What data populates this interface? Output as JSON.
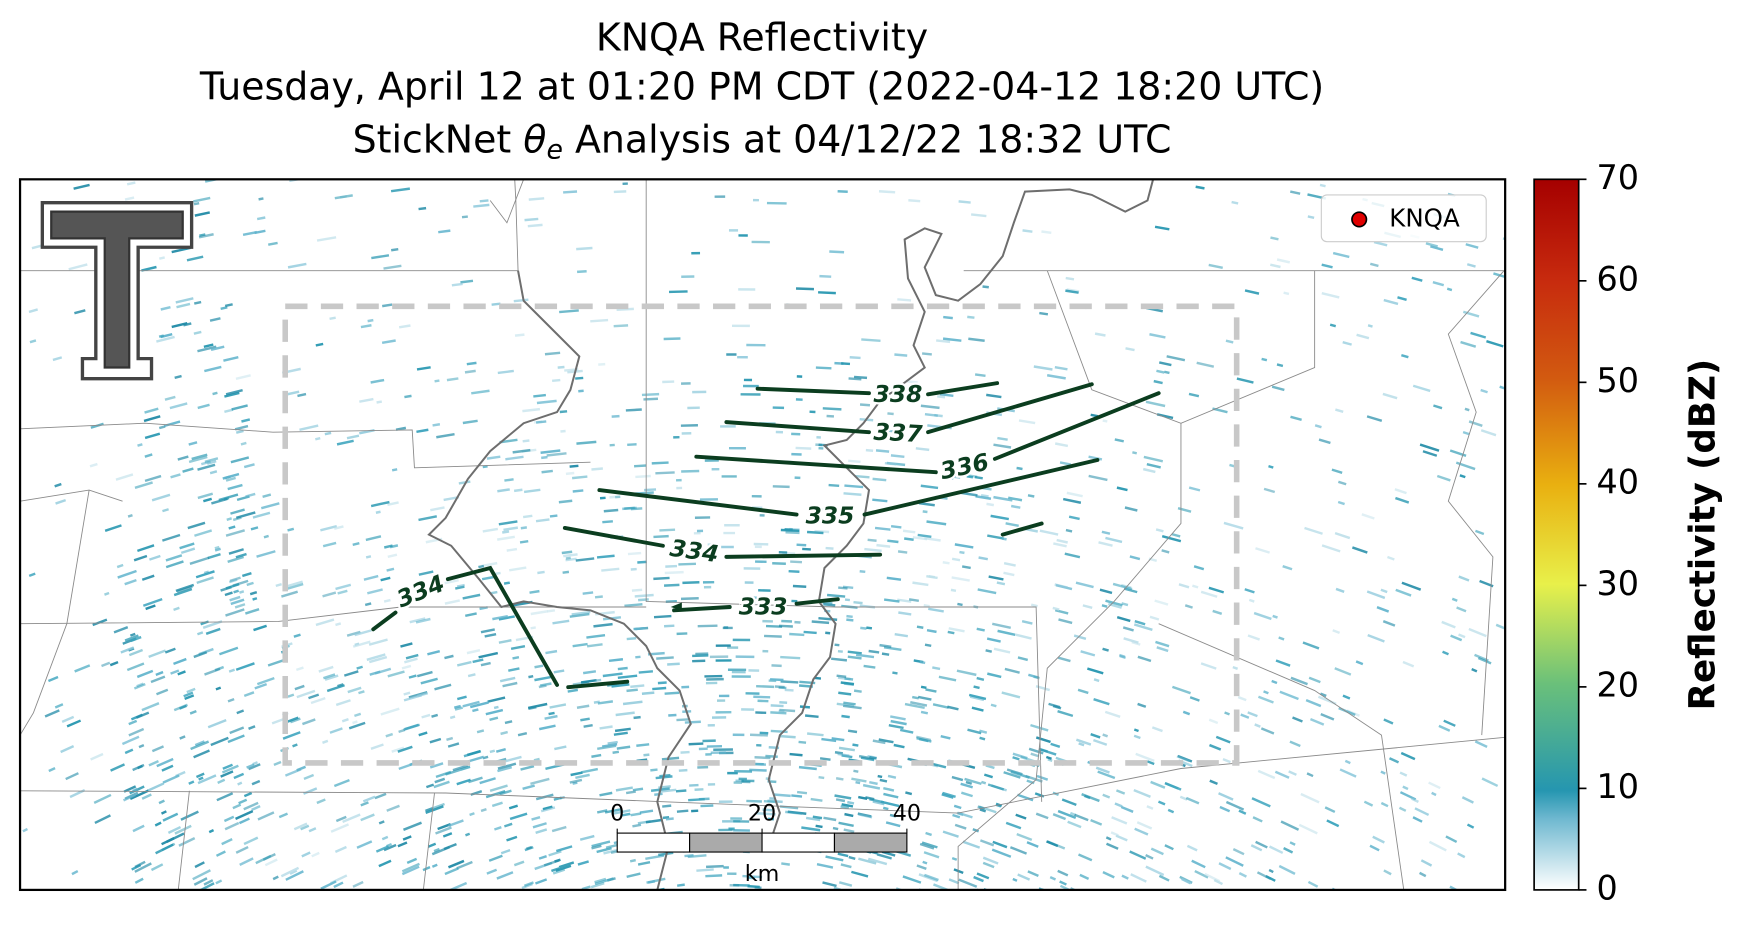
{
  "header": {
    "title_lines": [
      "KNQA Reflectivity",
      "Tuesday, April 12 at 01:20 PM CDT (2022-04-12 18:20 UTC)"
    ],
    "analysis_line": {
      "prefix": "StickNet ",
      "symbol": "θ",
      "subscript": "e",
      "suffix": " Analysis at 04/12/22 18:32 UTC"
    }
  },
  "legend": {
    "label": "KNQA",
    "color": "#e00000"
  },
  "colorbar": {
    "label": "Reflectivity (dBZ)",
    "lim": [
      0,
      70
    ],
    "ticks": [
      0,
      10,
      20,
      30,
      40,
      50,
      60,
      70
    ]
  },
  "contours": [
    {
      "label": 338
    },
    {
      "label": 337
    },
    {
      "label": 336
    },
    {
      "label": 335
    },
    {
      "label": 334
    },
    {
      "label": 334
    },
    {
      "label": 333
    }
  ],
  "scale_bar": {
    "lim": [
      0,
      40
    ],
    "ticks": [
      0,
      20,
      40
    ],
    "unit": "km"
  }
}
